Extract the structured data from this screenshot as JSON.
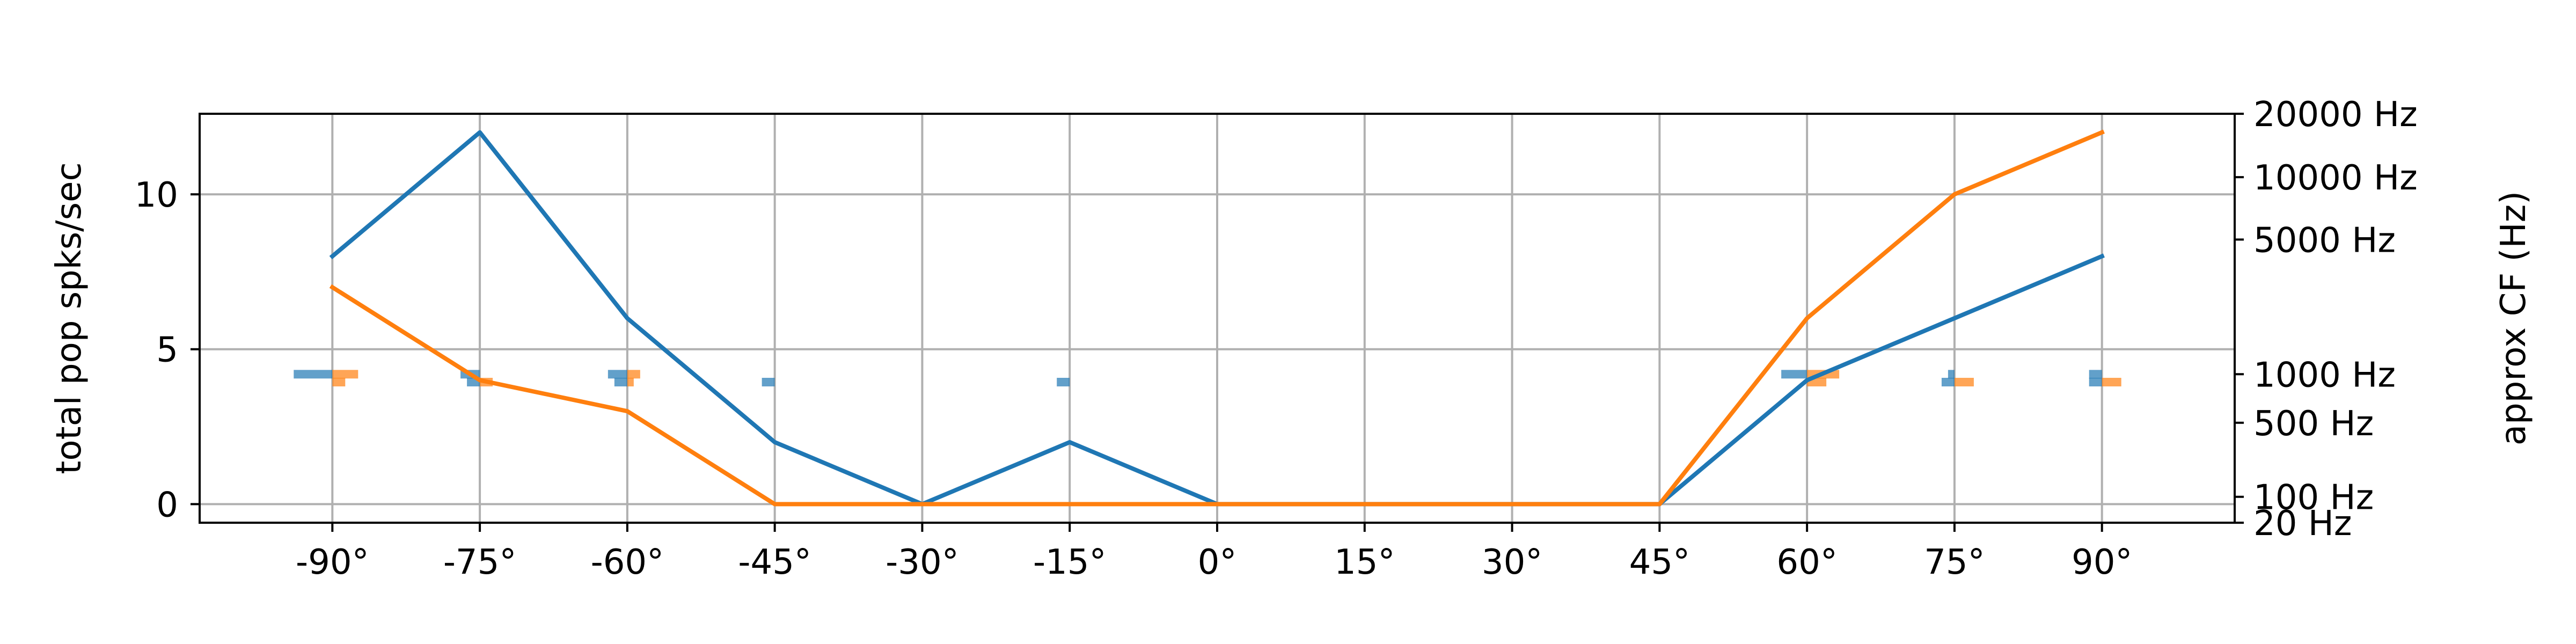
{
  "chart_data": {
    "type": "line",
    "title": "",
    "xlabel": "",
    "ylabel": "total pop spks/sec",
    "y2label": "approx CF (Hz)",
    "x": [
      -90,
      -75,
      -60,
      -45,
      -30,
      -15,
      0,
      15,
      30,
      45,
      60,
      75,
      90
    ],
    "x_tick_labels": [
      "-90°",
      "-75°",
      "-60°",
      "-45°",
      "-30°",
      "-15°",
      "0°",
      "15°",
      "30°",
      "45°",
      "60°",
      "75°",
      "90°"
    ],
    "xlim": [
      -103.5,
      103.5
    ],
    "ylim": [
      -0.6,
      12.6
    ],
    "y_ticks": [
      0,
      5,
      10
    ],
    "y_tick_labels": [
      "0",
      "5",
      "10"
    ],
    "y2_scale": "log-like (ERB)",
    "y2_ticks": [
      20,
      100,
      500,
      1000,
      5000,
      10000,
      20000
    ],
    "y2_tick_labels": [
      "20 Hz",
      "100 Hz",
      "500 Hz",
      "1000 Hz",
      "5000 Hz",
      "10000 Hz",
      "20000 Hz"
    ],
    "grid": true,
    "legend": "none",
    "series": [
      {
        "color": "#1f77b4",
        "values": [
          8,
          12,
          6,
          2,
          0,
          2,
          0,
          0,
          0,
          0,
          4,
          6,
          8
        ]
      },
      {
        "color": "#ff7f0e",
        "values": [
          7,
          4,
          3,
          0,
          0,
          0,
          0,
          0,
          0,
          0,
          6,
          10,
          12
        ]
      }
    ],
    "cf_histograms": [
      {
        "angle": -90,
        "blue": [
          {
            "cf": 1000,
            "count": 6
          }
        ],
        "orange": [
          {
            "cf": 1000,
            "count": 4
          },
          {
            "cf": 900,
            "count": 2
          }
        ]
      },
      {
        "angle": -75,
        "blue": [
          {
            "cf": 1000,
            "count": 3
          },
          {
            "cf": 900,
            "count": 2
          }
        ],
        "orange": [
          {
            "cf": 900,
            "count": 2
          }
        ]
      },
      {
        "angle": -60,
        "blue": [
          {
            "cf": 1000,
            "count": 3
          },
          {
            "cf": 900,
            "count": 2
          }
        ],
        "orange": [
          {
            "cf": 1000,
            "count": 2
          },
          {
            "cf": 900,
            "count": 1
          }
        ]
      },
      {
        "angle": -45,
        "blue": [
          {
            "cf": 900,
            "count": 2
          }
        ],
        "orange": []
      },
      {
        "angle": -15,
        "blue": [
          {
            "cf": 900,
            "count": 2
          }
        ],
        "orange": []
      },
      {
        "angle": 60,
        "blue": [
          {
            "cf": 1000,
            "count": 4
          }
        ],
        "orange": [
          {
            "cf": 1000,
            "count": 5
          },
          {
            "cf": 900,
            "count": 3
          }
        ]
      },
      {
        "angle": 75,
        "blue": [
          {
            "cf": 1000,
            "count": 1
          },
          {
            "cf": 900,
            "count": 2
          }
        ],
        "orange": [
          {
            "cf": 900,
            "count": 3
          }
        ]
      },
      {
        "angle": 90,
        "blue": [
          {
            "cf": 1000,
            "count": 2
          },
          {
            "cf": 900,
            "count": 2
          }
        ],
        "orange": [
          {
            "cf": 900,
            "count": 3
          }
        ]
      }
    ]
  }
}
